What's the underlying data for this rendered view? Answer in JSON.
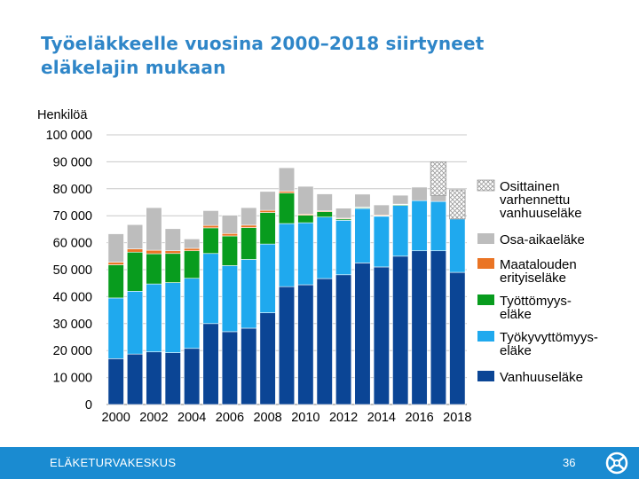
{
  "slide": {
    "title_line1": "Työeläkkeelle vuosina 2000–2018 siirtyneet",
    "title_line2": "eläkelajin mukaan"
  },
  "footer": {
    "org": "ELÄKETURVAKESKUS",
    "page": "36"
  },
  "chart_data": {
    "type": "bar",
    "stacked": true,
    "ylabel": "Henkilöä",
    "ylim": [
      0,
      100000
    ],
    "yticks": [
      0,
      10000,
      20000,
      30000,
      40000,
      50000,
      60000,
      70000,
      80000,
      90000,
      100000
    ],
    "ytick_labels": [
      "0",
      "10 000",
      "20 000",
      "30 000",
      "40 000",
      "50 000",
      "60 000",
      "70 000",
      "80 000",
      "90 000",
      "100 000"
    ],
    "grid": true,
    "legend_position": "right",
    "categories": [
      "2000",
      "2001",
      "2002",
      "2003",
      "2004",
      "2005",
      "2006",
      "2007",
      "2008",
      "2009",
      "2010",
      "2011",
      "2012",
      "2013",
      "2014",
      "2015",
      "2016",
      "2017",
      "2018"
    ],
    "xtick_labels": [
      "2000",
      "2002",
      "2004",
      "2006",
      "2008",
      "2010",
      "2012",
      "2014",
      "2016",
      "2018"
    ],
    "series": [
      {
        "name": "Vanhuuseläke",
        "legend": [
          "Vanhuuseläke"
        ],
        "color": "#0b4595",
        "values": [
          17000,
          18700,
          19500,
          19200,
          20800,
          30000,
          27000,
          28300,
          34000,
          43700,
          44400,
          46700,
          48100,
          52500,
          51000,
          55000,
          57000,
          57000,
          49000
        ]
      },
      {
        "name": "Työkyvyttömyyseläke",
        "legend": [
          "Työkyvyttömyys-",
          "eläke"
        ],
        "color": "#1fa9ee",
        "values": [
          22500,
          23300,
          25200,
          26000,
          26000,
          26000,
          24500,
          25500,
          25500,
          23400,
          23000,
          22800,
          20200,
          20200,
          18800,
          18800,
          18600,
          18300,
          19800
        ]
      },
      {
        "name": "Työttömyyseläke",
        "legend": [
          "Työttömyys-",
          "eläke"
        ],
        "color": "#089c1e",
        "values": [
          12300,
          14500,
          11200,
          10800,
          10200,
          9500,
          11000,
          11800,
          11700,
          11300,
          2800,
          2000,
          500,
          300,
          200,
          300,
          0,
          0,
          0
        ]
      },
      {
        "name": "Maatalouden erityiseläke",
        "legend": [
          "Maatalouden",
          "erityiseläke"
        ],
        "color": "#ea7424",
        "values": [
          1000,
          1200,
          1300,
          1000,
          900,
          900,
          900,
          900,
          800,
          700,
          400,
          300,
          300,
          200,
          300,
          200,
          0,
          0,
          0
        ]
      },
      {
        "name": "Osa-aikaeläke",
        "legend": [
          "Osa-aikaeläke"
        ],
        "color": "#bdbdbd",
        "values": [
          10500,
          9000,
          15800,
          8200,
          3500,
          5500,
          6800,
          6500,
          7000,
          8700,
          10300,
          6300,
          3700,
          4800,
          3700,
          3300,
          5000,
          2200,
          0
        ]
      },
      {
        "name": "Osittainen varhennettu vanhuuseläke",
        "legend": [
          "Osittainen",
          "varhennettu",
          "vanhuuseläke"
        ],
        "color": "#ffffff",
        "pattern": "crosshatch",
        "values": [
          0,
          0,
          0,
          0,
          0,
          0,
          0,
          0,
          0,
          0,
          0,
          0,
          0,
          0,
          0,
          0,
          0,
          12500,
          10800
        ]
      }
    ]
  }
}
